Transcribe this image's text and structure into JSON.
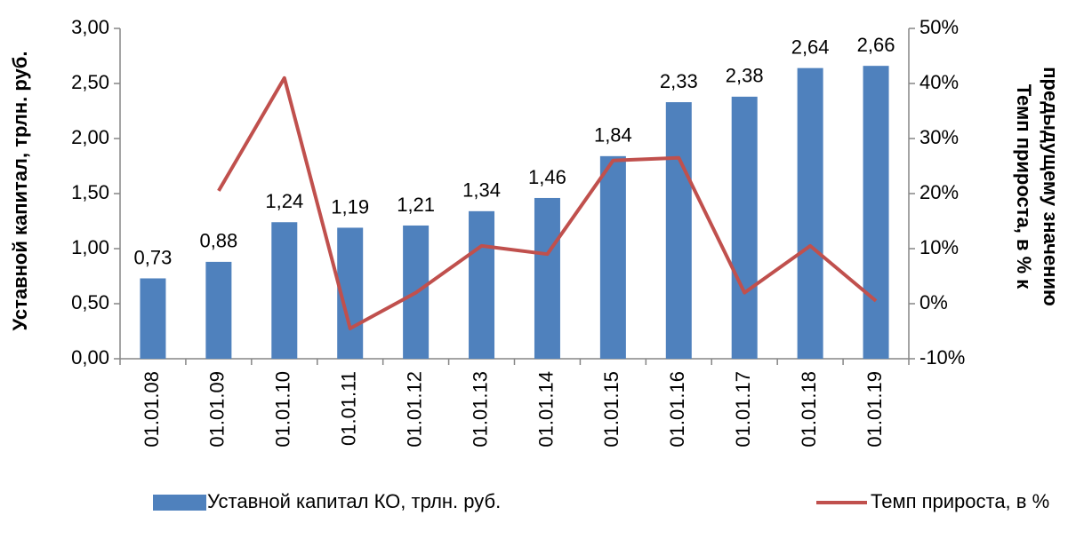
{
  "chart_data": {
    "type": "bar_line",
    "y_label": "Уставной капитал, трлн. руб.",
    "y2_label": [
      "Темп прироста, в % к",
      "предыдущему значению"
    ],
    "categories": [
      "01.01.08",
      "01.01.09",
      "01.01.10",
      "01.01.11",
      "01.01.12",
      "01.01.13",
      "01.01.14",
      "01.01.15",
      "01.01.16",
      "01.01.17",
      "01.01.18",
      "01.01.19"
    ],
    "series": [
      {
        "name": "Уставной капитал КО, трлн. руб.",
        "type": "bar",
        "color": "#4f81bd",
        "values": [
          0.73,
          0.88,
          1.24,
          1.19,
          1.21,
          1.34,
          1.46,
          1.84,
          2.33,
          2.38,
          2.64,
          2.66
        ],
        "value_labels": [
          "0,73",
          "0,88",
          "1,24",
          "1,19",
          "1,21",
          "1,34",
          "1,46",
          "1,84",
          "2,33",
          "2,38",
          "2,64",
          "2,66"
        ]
      },
      {
        "name": "Темп прироста, в %",
        "type": "line",
        "axis": "y2",
        "color": "#c0504d",
        "values": [
          null,
          20.5,
          41,
          -4.5,
          2,
          10.5,
          9,
          26,
          26.5,
          2,
          10.5,
          0.5
        ]
      }
    ],
    "ylim": [
      0,
      3
    ],
    "yticks": [
      {
        "value": 0,
        "label": "0,00"
      },
      {
        "value": 0.5,
        "label": "0,50"
      },
      {
        "value": 1,
        "label": "1,00"
      },
      {
        "value": 1.5,
        "label": "1,50"
      },
      {
        "value": 2,
        "label": "2,00"
      },
      {
        "value": 2.5,
        "label": "2,50"
      },
      {
        "value": 3,
        "label": "3,00"
      }
    ],
    "y2lim": [
      -10,
      50
    ],
    "y2ticks": [
      {
        "value": -10,
        "label": "-10%"
      },
      {
        "value": 0,
        "label": "0%"
      },
      {
        "value": 10,
        "label": "10%"
      },
      {
        "value": 20,
        "label": "20%"
      },
      {
        "value": 30,
        "label": "30%"
      },
      {
        "value": 40,
        "label": "40%"
      },
      {
        "value": 50,
        "label": "50%"
      }
    ],
    "legend": "bottom"
  }
}
